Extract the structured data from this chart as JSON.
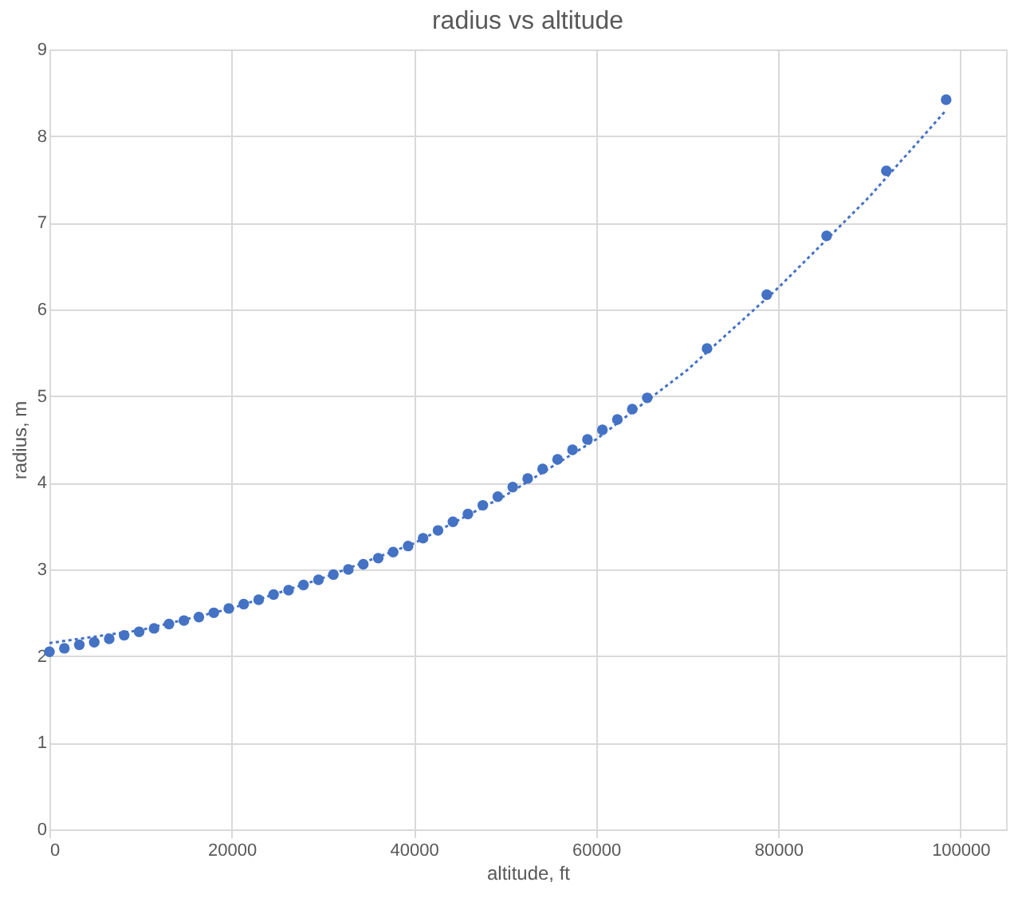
{
  "chart_data": {
    "type": "scatter",
    "title": "radius vs altitude",
    "xlabel": "altitude, ft",
    "ylabel": "radius, m",
    "xlim": [
      0,
      105000
    ],
    "xticks": [
      0,
      20000,
      40000,
      60000,
      80000,
      100000
    ],
    "ylim": [
      0,
      9
    ],
    "yticks": [
      0,
      1,
      2,
      3,
      4,
      5,
      6,
      7,
      8,
      9
    ],
    "grid": true,
    "marker": "circle",
    "x": [
      0,
      1640,
      3281,
      4921,
      6562,
      8202,
      9843,
      11483,
      13123,
      14764,
      16404,
      18045,
      19685,
      21325,
      22966,
      24606,
      26247,
      27887,
      29528,
      31168,
      32808,
      34449,
      36089,
      37730,
      39370,
      41010,
      42651,
      44291,
      45932,
      47572,
      49213,
      50853,
      52493,
      54134,
      55774,
      57415,
      59055,
      60696,
      62336,
      63976,
      65617,
      72178,
      78740,
      85302,
      91864,
      98425
    ],
    "series": [
      {
        "color": "#4472c4",
        "values": [
          2.05,
          2.09,
          2.13,
          2.16,
          2.2,
          2.24,
          2.28,
          2.32,
          2.37,
          2.41,
          2.45,
          2.5,
          2.55,
          2.6,
          2.65,
          2.71,
          2.76,
          2.82,
          2.88,
          2.94,
          3.0,
          3.06,
          3.13,
          3.2,
          3.27,
          3.36,
          3.45,
          3.55,
          3.64,
          3.74,
          3.84,
          3.95,
          4.05,
          4.16,
          4.27,
          4.38,
          4.5,
          4.61,
          4.73,
          4.85,
          4.98,
          5.55,
          6.17,
          6.85,
          7.6,
          8.42
        ]
      },
      {
        "type": "line",
        "color": "#4472c4",
        "line_style": "dotted",
        "marker": "none",
        "x": [
          0,
          10000,
          20000,
          30000,
          40000,
          50000,
          60000,
          70000,
          80000,
          90000,
          98425
        ],
        "values": [
          2.15,
          2.3,
          2.55,
          2.9,
          3.3,
          3.85,
          4.5,
          5.3,
          6.25,
          7.3,
          8.3
        ]
      }
    ]
  }
}
